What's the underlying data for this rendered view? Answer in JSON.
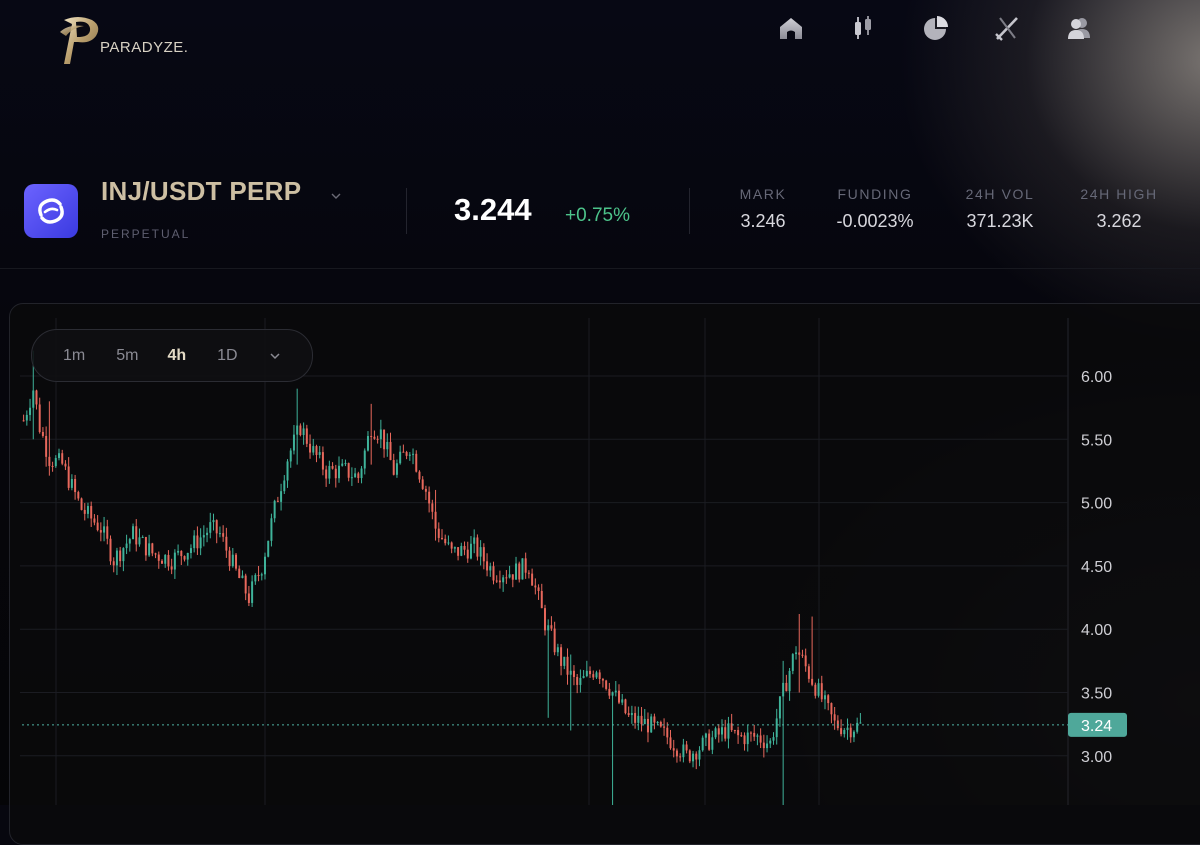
{
  "brand": {
    "name": "PARADYZE."
  },
  "nav": [
    {
      "icon": "home-icon"
    },
    {
      "icon": "candlestick-icon"
    },
    {
      "icon": "pie-chart-icon"
    },
    {
      "icon": "swords-icon"
    },
    {
      "icon": "users-icon"
    }
  ],
  "market": {
    "pair": "INJ/USDT PERP",
    "type": "PERPETUAL",
    "price": "3.244",
    "change": "+0.75%",
    "stats": [
      {
        "label": "MARK",
        "value": "3.246"
      },
      {
        "label": "FUNDING",
        "value": "-0.0023%"
      },
      {
        "label": "24H VOL",
        "value": "371.23K"
      },
      {
        "label": "24H HIGH",
        "value": "3.262"
      }
    ]
  },
  "timeframes": [
    {
      "label": "1m"
    },
    {
      "label": "5m"
    },
    {
      "label": "4h"
    },
    {
      "label": "1D"
    }
  ],
  "active_timeframe": "4h",
  "colors": {
    "up": "#3fb39a",
    "down": "#e8685c",
    "accent": "#cdbfa3",
    "change_up": "#4cc38a"
  },
  "chart_data": {
    "type": "candlestick",
    "y_ticks": [
      "6.00",
      "5.50",
      "5.00",
      "4.50",
      "4.00",
      "3.50",
      "3.00"
    ],
    "ylim": [
      2.6,
      6.45
    ],
    "last_price_label": "3.24",
    "last_price": 3.244,
    "anchors": [
      [
        0,
        5.65
      ],
      [
        3,
        5.9
      ],
      [
        5,
        5.6
      ],
      [
        8,
        5.35
      ],
      [
        12,
        5.3
      ],
      [
        18,
        4.95
      ],
      [
        24,
        4.8
      ],
      [
        28,
        4.55
      ],
      [
        34,
        4.75
      ],
      [
        40,
        4.6
      ],
      [
        46,
        4.55
      ],
      [
        52,
        4.65
      ],
      [
        58,
        4.8
      ],
      [
        61,
        4.75
      ],
      [
        66,
        4.45
      ],
      [
        70,
        4.25
      ],
      [
        74,
        4.5
      ],
      [
        78,
        4.95
      ],
      [
        82,
        5.35
      ],
      [
        86,
        5.6
      ],
      [
        90,
        5.4
      ],
      [
        94,
        5.25
      ],
      [
        100,
        5.25
      ],
      [
        104,
        5.2
      ],
      [
        108,
        5.6
      ],
      [
        111,
        5.55
      ],
      [
        115,
        5.25
      ],
      [
        120,
        5.45
      ],
      [
        125,
        5.1
      ],
      [
        128,
        4.8
      ],
      [
        133,
        4.6
      ],
      [
        140,
        4.65
      ],
      [
        146,
        4.45
      ],
      [
        152,
        4.45
      ],
      [
        157,
        4.5
      ],
      [
        162,
        4.05
      ],
      [
        167,
        3.75
      ],
      [
        172,
        3.55
      ],
      [
        178,
        3.7
      ],
      [
        183,
        3.5
      ],
      [
        188,
        3.3
      ],
      [
        194,
        3.25
      ],
      [
        200,
        3.15
      ],
      [
        206,
        3.0
      ],
      [
        212,
        3.1
      ],
      [
        218,
        3.2
      ],
      [
        222,
        3.15
      ],
      [
        228,
        3.15
      ],
      [
        232,
        3.1
      ],
      [
        236,
        3.5
      ],
      [
        240,
        3.85
      ],
      [
        244,
        3.65
      ],
      [
        248,
        3.45
      ],
      [
        252,
        3.25
      ],
      [
        256,
        3.22
      ],
      [
        260,
        3.24
      ]
    ],
    "spikes": [
      [
        3,
        6.2,
        5.5
      ],
      [
        8,
        5.8,
        5.35
      ],
      [
        70,
        4.15,
        4.4
      ],
      [
        85,
        5.9,
        5.3
      ],
      [
        108,
        5.78,
        5.3
      ],
      [
        128,
        5.1,
        4.7
      ],
      [
        163,
        3.95,
        3.3
      ],
      [
        170,
        3.8,
        3.2
      ],
      [
        183,
        3.45,
        2.55
      ],
      [
        236,
        3.75,
        2.6
      ],
      [
        241,
        4.12,
        3.5
      ],
      [
        245,
        4.1,
        3.6
      ]
    ]
  }
}
